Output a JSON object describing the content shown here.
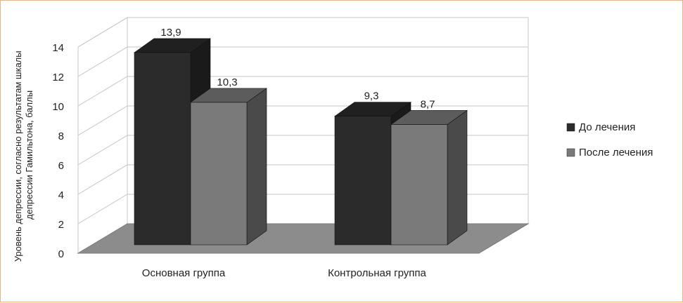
{
  "chart_data": {
    "type": "bar",
    "title": "",
    "ylabel": "Уровень депрессии, согласно результатам шкалы депрессии Гамильтона, баллы",
    "ylabel_lines": [
      "Уровень депрессии, согласно результатам шкалы",
      "депрессии Гамильтона, баллы"
    ],
    "xlabel": "",
    "categories": [
      "Основная группа",
      "Контрольная группа"
    ],
    "series": [
      {
        "name": "До лечения",
        "values": [
          13.9,
          9.3
        ],
        "labels": [
          "13,9",
          "9,3"
        ],
        "color": "#2b2b2b",
        "side_color": "#1a1a1a",
        "top_color": "#202020"
      },
      {
        "name": "После лечения",
        "values": [
          10.3,
          8.7
        ],
        "labels": [
          "10,3",
          "8,7"
        ],
        "color": "#7a7a7a",
        "side_color": "#4a4a4a",
        "top_color": "#5c5c5c"
      }
    ],
    "ylim": [
      0,
      14
    ],
    "yticks": [
      0,
      2,
      4,
      6,
      8,
      10,
      12,
      14
    ],
    "grid": true,
    "legend_position": "right",
    "floor_color": "#8c8c8c"
  }
}
